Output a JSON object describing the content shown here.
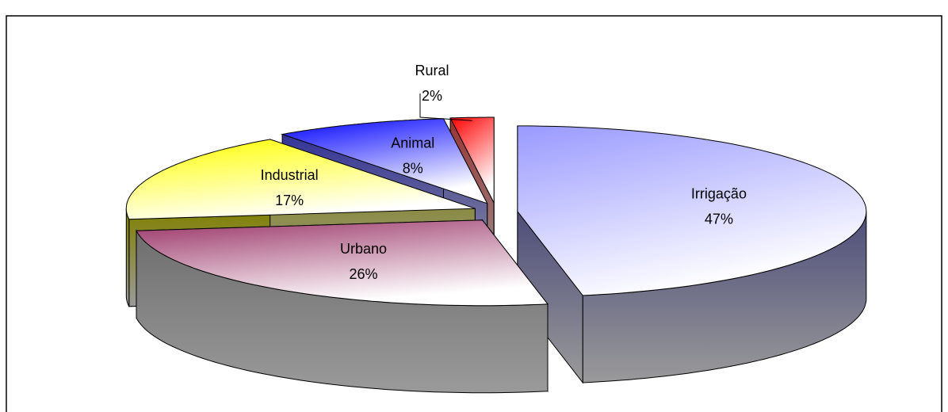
{
  "chart_data": {
    "type": "pie3d",
    "categories": [
      "Irrigação",
      "Urbano",
      "Industrial",
      "Animal",
      "Rural"
    ],
    "values": [
      47,
      26,
      17,
      8,
      2
    ],
    "value_labels": [
      "47%",
      "26%",
      "17%",
      "8%",
      "2%"
    ],
    "colors": [
      "#9999ff",
      "#993366",
      "#ffff00",
      "#0000ff",
      "#ff0000"
    ],
    "side_colors": [
      "#4d4d7a",
      "#6e6e6e",
      "#808000",
      "#333399",
      "#993333"
    ]
  }
}
